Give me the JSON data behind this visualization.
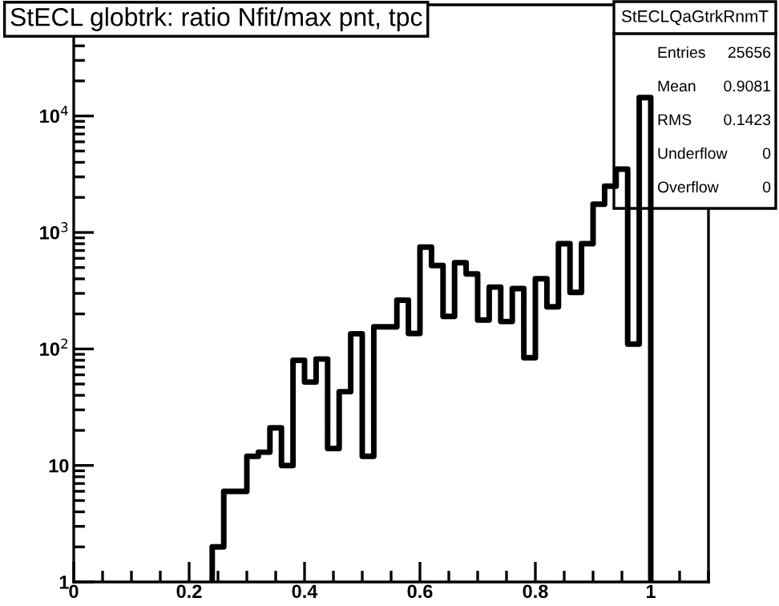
{
  "chart_data": {
    "type": "histogram",
    "title": "StECL globtrk: ratio Nfit/max pnt, tpc",
    "bins": [
      0.24,
      0.26,
      0.28,
      0.3,
      0.32,
      0.34,
      0.36,
      0.38,
      0.4,
      0.42,
      0.44,
      0.46,
      0.48,
      0.5,
      0.52,
      0.54,
      0.56,
      0.58,
      0.6,
      0.62,
      0.64,
      0.66,
      0.68,
      0.7,
      0.72,
      0.74,
      0.76,
      0.78,
      0.8,
      0.82,
      0.84,
      0.86,
      0.88,
      0.9,
      0.92,
      0.94,
      0.96,
      0.98,
      1.0
    ],
    "values": [
      2,
      6,
      6,
      12,
      13,
      21,
      10,
      80,
      52,
      82,
      14,
      43,
      135,
      12,
      155,
      155,
      262,
      136,
      750,
      520,
      190,
      550,
      440,
      177,
      340,
      172,
      330,
      84,
      400,
      230,
      800,
      306,
      800,
      1750,
      2500,
      3500,
      110,
      14400
    ],
    "color": "#000000",
    "log": "y",
    "xlim": [
      0,
      1.1
    ],
    "xticks": [
      0,
      0.2,
      0.4,
      0.6,
      0.8,
      1
    ],
    "ylim": [
      1,
      90000
    ],
    "yticks": [
      1,
      10,
      {
        "value": 100,
        "label": "10$^{2}$"
      },
      {
        "value": 1000,
        "label": "10$^{3}$"
      },
      {
        "value": 10000,
        "label": "10$^{4}$"
      }
    ],
    "grid": false,
    "legend": false,
    "annotations": [
      "StECLQaGtrkRnmT",
      "Entries",
      "25656",
      "Mean",
      "0.9081",
      "RMS",
      "0.1423",
      "Underflow",
      "0",
      "Overflow",
      "0"
    ]
  }
}
